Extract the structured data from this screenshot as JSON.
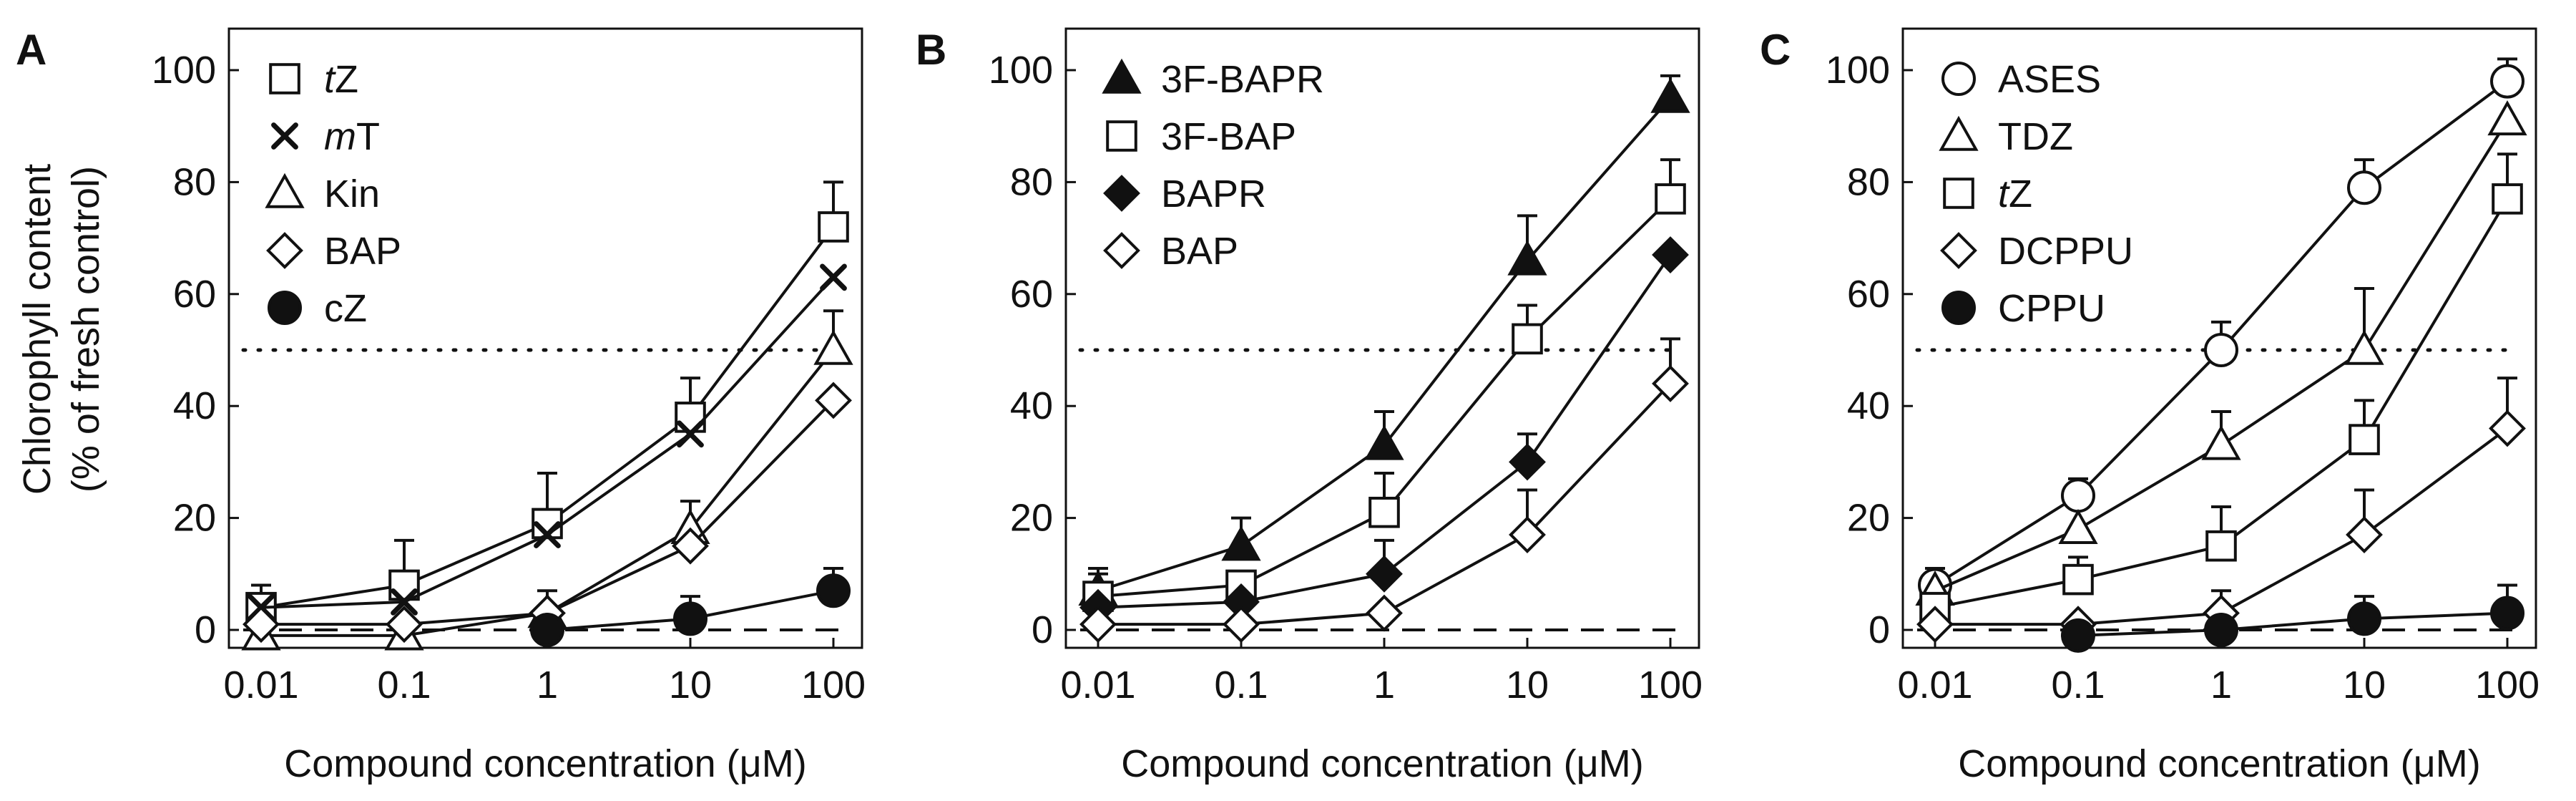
{
  "chart_data": [
    {
      "panel": "A",
      "type": "line",
      "title": "",
      "xlabel": "Compound concentration (μM)",
      "ylabel": "Chlorophyll content",
      "ylabel_line2": "(% of fresh control)",
      "x": [
        0.01,
        0.1,
        1,
        10,
        100
      ],
      "x_ticks": [
        "0.01",
        "0.1",
        "1",
        "10",
        "100"
      ],
      "y_ticks": [
        "0",
        "20",
        "40",
        "60",
        "80",
        "100"
      ],
      "ylim": [
        -3,
        107
      ],
      "reference_lines": {
        "dotted": 50,
        "dashed": 0
      },
      "legend_position": "top-left",
      "series": [
        {
          "name": "tZ",
          "label_prefix": "t",
          "label_rest": "Z",
          "marker": "square-open",
          "values": [
            4,
            8,
            19,
            38,
            72
          ],
          "errors": [
            4,
            8,
            9,
            7,
            8
          ]
        },
        {
          "name": "mT",
          "label_prefix": "m",
          "label_rest": "T",
          "marker": "x",
          "values": [
            4,
            5,
            17,
            35,
            63
          ],
          "errors": [
            0,
            0,
            0,
            0,
            0
          ]
        },
        {
          "name": "Kin",
          "label_prefix": "",
          "label_rest": "Kin",
          "marker": "triangle-open",
          "values": [
            -1,
            -1,
            3,
            18,
            50
          ],
          "errors": [
            0,
            0,
            4,
            5,
            7
          ]
        },
        {
          "name": "BAP",
          "label_prefix": "",
          "label_rest": "BAP",
          "marker": "diamond-open",
          "values": [
            1,
            1,
            3,
            15,
            41
          ],
          "errors": [
            0,
            0,
            0,
            0,
            0
          ]
        },
        {
          "name": "cZ",
          "label_prefix": "",
          "label_rest": "cZ",
          "marker": "circle-filled",
          "values": [
            null,
            null,
            0,
            2,
            7
          ],
          "errors": [
            0,
            0,
            0,
            4,
            4
          ]
        }
      ]
    },
    {
      "panel": "B",
      "type": "line",
      "title": "",
      "xlabel": "Compound concentration (μM)",
      "x": [
        0.01,
        0.1,
        1,
        10,
        100
      ],
      "x_ticks": [
        "0.01",
        "0.1",
        "1",
        "10",
        "100"
      ],
      "y_ticks": [
        "0",
        "20",
        "40",
        "60",
        "80",
        "100"
      ],
      "ylim": [
        -3,
        107
      ],
      "reference_lines": {
        "dotted": 50,
        "dashed": 0
      },
      "legend_position": "top-left",
      "series": [
        {
          "name": "3F-BAPR",
          "label_prefix": "",
          "label_rest": "3F-BAPR",
          "marker": "triangle-filled",
          "values": [
            7,
            15,
            33,
            66,
            95
          ],
          "errors": [
            4,
            5,
            6,
            8,
            4
          ]
        },
        {
          "name": "3F-BAP",
          "label_prefix": "",
          "label_rest": "3F-BAP",
          "marker": "square-open",
          "values": [
            6,
            8,
            21,
            52,
            77
          ],
          "errors": [
            4,
            0,
            7,
            6,
            7
          ]
        },
        {
          "name": "BAPR",
          "label_prefix": "",
          "label_rest": "BAPR",
          "marker": "diamond-filled",
          "values": [
            4,
            5,
            10,
            30,
            67
          ],
          "errors": [
            0,
            0,
            6,
            5,
            0
          ]
        },
        {
          "name": "BAP",
          "label_prefix": "",
          "label_rest": "BAP",
          "marker": "diamond-open",
          "values": [
            1,
            1,
            3,
            17,
            44
          ],
          "errors": [
            0,
            0,
            0,
            8,
            8
          ]
        }
      ]
    },
    {
      "panel": "C",
      "type": "line",
      "title": "",
      "xlabel": "Compound concentration (μM)",
      "x": [
        0.01,
        0.1,
        1,
        10,
        100
      ],
      "x_ticks": [
        "0.01",
        "0.1",
        "1",
        "10",
        "100"
      ],
      "y_ticks": [
        "0",
        "20",
        "40",
        "60",
        "80",
        "100"
      ],
      "ylim": [
        -3,
        107
      ],
      "reference_lines": {
        "dotted": 50,
        "dashed": 0
      },
      "legend_position": "top-left",
      "series": [
        {
          "name": "ASES",
          "label_prefix": "",
          "label_rest": "ASES",
          "marker": "circle-open",
          "values": [
            8,
            24,
            50,
            79,
            98
          ],
          "errors": [
            3,
            3,
            5,
            5,
            4
          ]
        },
        {
          "name": "TDZ",
          "label_prefix": "",
          "label_rest": "TDZ",
          "marker": "triangle-open",
          "values": [
            7,
            18,
            33,
            50,
            91
          ],
          "errors": [
            0,
            0,
            6,
            11,
            0
          ]
        },
        {
          "name": "tZ",
          "label_prefix": "t",
          "label_rest": "Z",
          "marker": "square-open",
          "values": [
            4,
            9,
            15,
            34,
            77
          ],
          "errors": [
            0,
            4,
            7,
            7,
            8
          ]
        },
        {
          "name": "DCPPU",
          "label_prefix": "",
          "label_rest": "DCPPU",
          "marker": "diamond-open",
          "values": [
            1,
            1,
            3,
            17,
            36
          ],
          "errors": [
            0,
            0,
            4,
            8,
            9
          ]
        },
        {
          "name": "CPPU",
          "label_prefix": "",
          "label_rest": "CPPU",
          "marker": "circle-filled",
          "values": [
            null,
            -1,
            0,
            2,
            3
          ],
          "errors": [
            0,
            0,
            0,
            4,
            5
          ]
        }
      ]
    }
  ]
}
